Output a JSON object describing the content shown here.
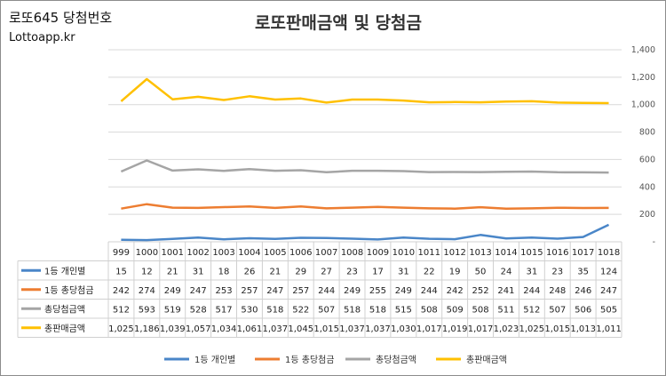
{
  "header": {
    "site_name": "로또645 당첨번호",
    "site_url": "Lottoapp.kr"
  },
  "chart_data": {
    "type": "line",
    "title": "로또판매금액 및 당첨금",
    "x": [
      "999",
      "1000",
      "1001",
      "1002",
      "1003",
      "1004",
      "1005",
      "1006",
      "1007",
      "1008",
      "1009",
      "1010",
      "1011",
      "1012",
      "1013",
      "1014",
      "1015",
      "1016",
      "1017",
      "1018"
    ],
    "ylim": [
      0,
      1400
    ],
    "yticks": [
      0,
      200,
      400,
      600,
      800,
      1000,
      1200,
      1400
    ],
    "ytick_labels": [
      "-",
      "200",
      "400",
      "600",
      "800",
      "1,000",
      "1,200",
      "1,400"
    ],
    "grid": true,
    "legend_position": "bottom",
    "series": [
      {
        "name": "1등 개인별",
        "color": "#4a86c8",
        "values": [
          15,
          12,
          21,
          31,
          18,
          26,
          21,
          29,
          27,
          23,
          17,
          31,
          22,
          19,
          50,
          24,
          31,
          23,
          35,
          124
        ],
        "labels": [
          "15",
          "12",
          "21",
          "31",
          "18",
          "26",
          "21",
          "29",
          "27",
          "23",
          "17",
          "31",
          "22",
          "19",
          "50",
          "24",
          "31",
          "23",
          "35",
          "124"
        ]
      },
      {
        "name": "1등 총당첨금",
        "color": "#ed7d31",
        "values": [
          242,
          274,
          249,
          247,
          253,
          257,
          247,
          257,
          244,
          249,
          255,
          249,
          244,
          242,
          252,
          241,
          244,
          248,
          246,
          247
        ],
        "labels": [
          "242",
          "274",
          "249",
          "247",
          "253",
          "257",
          "247",
          "257",
          "244",
          "249",
          "255",
          "249",
          "244",
          "242",
          "252",
          "241",
          "244",
          "248",
          "246",
          "247"
        ]
      },
      {
        "name": "총당첨금액",
        "color": "#a5a5a5",
        "values": [
          512,
          593,
          519,
          528,
          517,
          530,
          518,
          522,
          507,
          518,
          518,
          515,
          508,
          509,
          508,
          511,
          512,
          507,
          506,
          505
        ],
        "labels": [
          "512",
          "593",
          "519",
          "528",
          "517",
          "530",
          "518",
          "522",
          "507",
          "518",
          "518",
          "515",
          "508",
          "509",
          "508",
          "511",
          "512",
          "507",
          "506",
          "505"
        ]
      },
      {
        "name": "총판매금액",
        "color": "#ffc000",
        "values": [
          1025,
          1186,
          1039,
          1057,
          1034,
          1061,
          1037,
          1045,
          1015,
          1037,
          1037,
          1030,
          1017,
          1019,
          1017,
          1023,
          1025,
          1015,
          1013,
          1011
        ],
        "labels": [
          "1,025",
          "1,186",
          "1,039",
          "1,057",
          "1,034",
          "1,061",
          "1,037",
          "1,045",
          "1,015",
          "1,037",
          "1,037",
          "1,030",
          "1,017",
          "1,019",
          "1,017",
          "1,023",
          "1,025",
          "1,015",
          "1,013",
          "1,011"
        ]
      }
    ]
  }
}
